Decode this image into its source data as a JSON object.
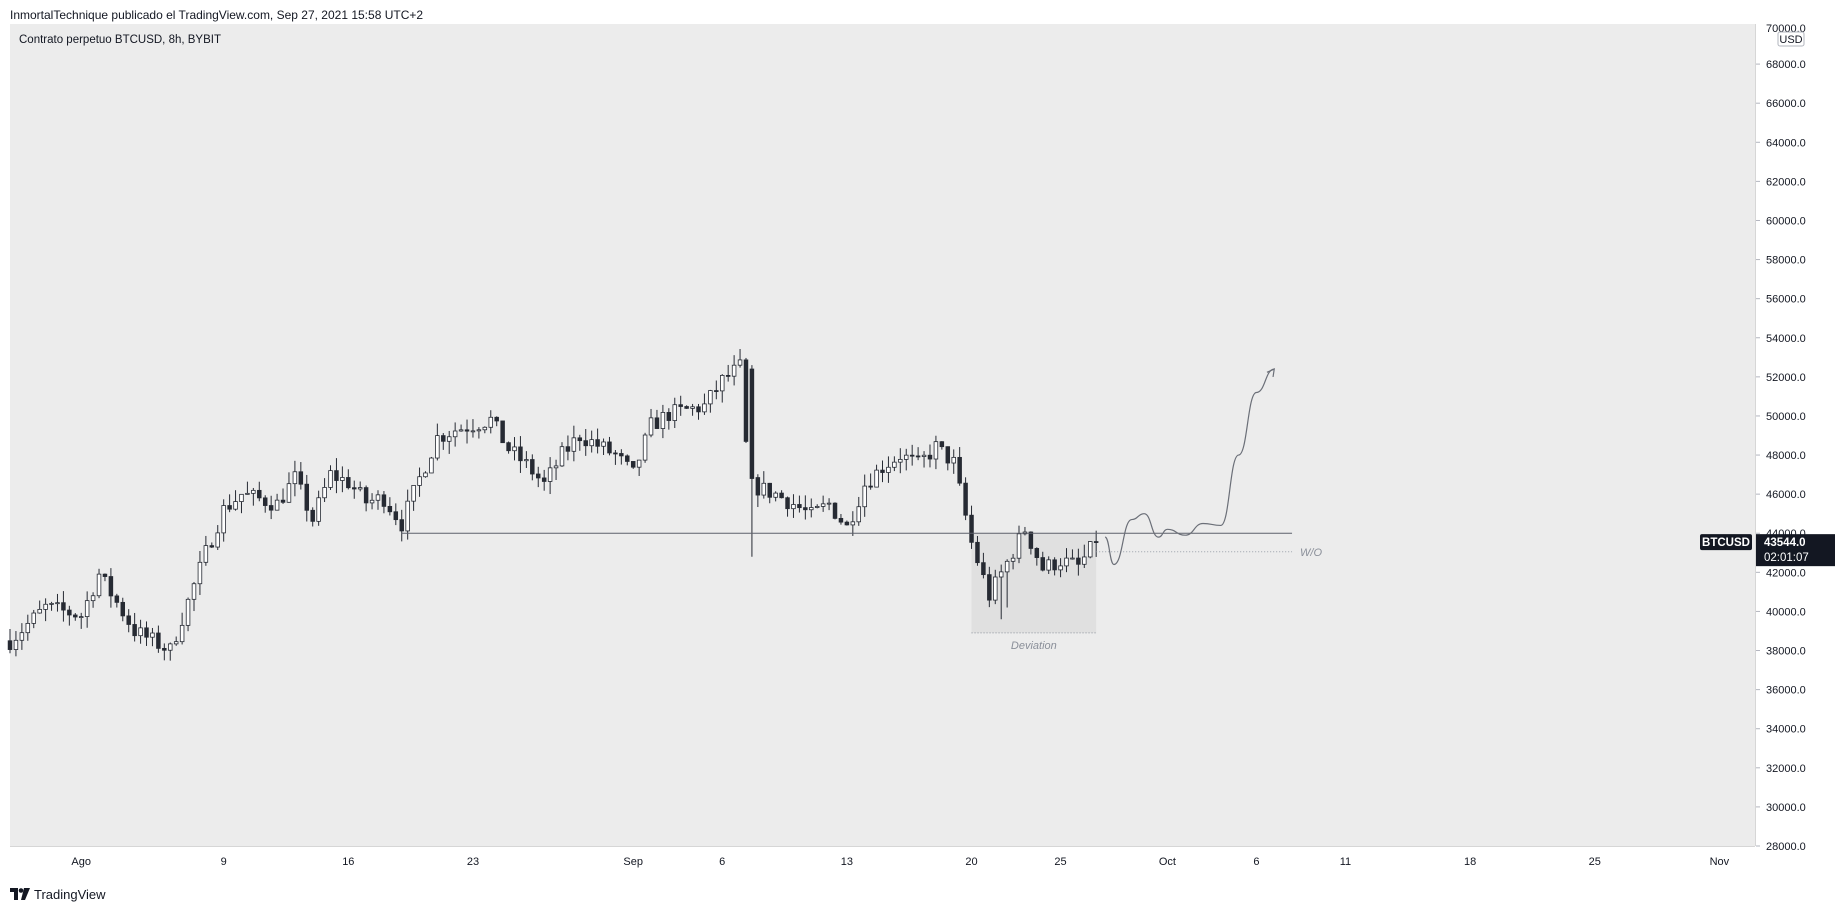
{
  "header": {
    "published_text": "InmortalTechnique publicado el TradingView.com, Sep 27, 2021 15:58 UTC+2"
  },
  "legend": {
    "symbol_text": "Contrato perpetuo BTCUSD, 8h, BYBIT"
  },
  "footer": {
    "brand": "TradingView",
    "logo_icon": "tradingview-logo-icon"
  },
  "colors": {
    "chart_bg": "#ececec",
    "candle": "#262a33",
    "badge_bg": "#131722",
    "annotation": "#8a8f99"
  },
  "chart_data": {
    "type": "candlestick",
    "title": "",
    "interval": "8h",
    "exchange": "BYBIT",
    "currency_label": "USD",
    "symbol": "BTCUSD",
    "ylim": [
      28000,
      70000
    ],
    "y_ticks": [
      "68000.0",
      "66000.0",
      "64000.0",
      "62000.0",
      "60000.0",
      "58000.0",
      "56000.0",
      "54000.0",
      "52000.0",
      "50000.0",
      "48000.0",
      "46000.0",
      "44000.0",
      "42000.0",
      "40000.0",
      "38000.0",
      "36000.0",
      "34000.0",
      "32000.0",
      "30000.0",
      "28000.0"
    ],
    "y_top_tick": "70000.0",
    "x_start": "2021-07-28",
    "x_end": "2021-11-03",
    "x_ticks": [
      {
        "date": "2021-08-01",
        "label": "Ago"
      },
      {
        "date": "2021-08-09",
        "label": "9"
      },
      {
        "date": "2021-08-16",
        "label": "16"
      },
      {
        "date": "2021-08-23",
        "label": "23"
      },
      {
        "date": "2021-09-01",
        "label": "Sep"
      },
      {
        "date": "2021-09-06",
        "label": "6"
      },
      {
        "date": "2021-09-13",
        "label": "13"
      },
      {
        "date": "2021-09-20",
        "label": "20"
      },
      {
        "date": "2021-09-25",
        "label": "25"
      },
      {
        "date": "2021-10-01",
        "label": "Oct"
      },
      {
        "date": "2021-10-06",
        "label": "6"
      },
      {
        "date": "2021-10-11",
        "label": "11"
      },
      {
        "date": "2021-10-18",
        "label": "18"
      },
      {
        "date": "2021-10-25",
        "label": "25"
      },
      {
        "date": "2021-11-01",
        "label": "Nov"
      }
    ],
    "waypoints": [
      {
        "date": "2021-07-28",
        "close": 38500
      },
      {
        "date": "2021-07-30",
        "close": 40200
      },
      {
        "date": "2021-08-01",
        "close": 39800
      },
      {
        "date": "2021-08-02",
        "close": 41900
      },
      {
        "date": "2021-08-04",
        "close": 39000
      },
      {
        "date": "2021-08-06",
        "close": 38000
      },
      {
        "date": "2021-08-07",
        "close": 40500
      },
      {
        "date": "2021-08-08",
        "close": 43000
      },
      {
        "date": "2021-08-09",
        "close": 45200
      },
      {
        "date": "2021-08-10",
        "close": 46000
      },
      {
        "date": "2021-08-12",
        "close": 45500
      },
      {
        "date": "2021-08-13",
        "close": 46800
      },
      {
        "date": "2021-08-14",
        "close": 44700
      },
      {
        "date": "2021-08-15",
        "close": 47000
      },
      {
        "date": "2021-08-16",
        "close": 46600
      },
      {
        "date": "2021-08-17",
        "close": 45600
      },
      {
        "date": "2021-08-18",
        "close": 45800
      },
      {
        "date": "2021-08-19",
        "close": 44500
      },
      {
        "date": "2021-08-20",
        "close": 46800
      },
      {
        "date": "2021-08-21",
        "close": 48900
      },
      {
        "date": "2021-08-22",
        "close": 49300
      },
      {
        "date": "2021-08-24",
        "close": 49800
      },
      {
        "date": "2021-08-25",
        "close": 48300
      },
      {
        "date": "2021-08-26",
        "close": 47500
      },
      {
        "date": "2021-08-27",
        "close": 46500
      },
      {
        "date": "2021-08-28",
        "close": 48000
      },
      {
        "date": "2021-08-29",
        "close": 49000
      },
      {
        "date": "2021-08-31",
        "close": 48000
      },
      {
        "date": "2021-09-01",
        "close": 47000
      },
      {
        "date": "2021-09-02",
        "close": 49500
      },
      {
        "date": "2021-09-03",
        "close": 50100
      },
      {
        "date": "2021-09-05",
        "close": 50500
      },
      {
        "date": "2021-09-06",
        "close": 51800
      },
      {
        "date": "2021-09-07",
        "close": 52500
      },
      {
        "date": "2021-09-07.5",
        "close": 46500
      },
      {
        "date": "2021-09-09",
        "close": 46000
      },
      {
        "date": "2021-09-10",
        "close": 45500
      },
      {
        "date": "2021-09-11",
        "close": 44900
      },
      {
        "date": "2021-09-12",
        "close": 45500
      },
      {
        "date": "2021-09-13",
        "close": 44300
      },
      {
        "date": "2021-09-14",
        "close": 46500
      },
      {
        "date": "2021-09-15",
        "close": 47400
      },
      {
        "date": "2021-09-16",
        "close": 48000
      },
      {
        "date": "2021-09-17",
        "close": 47500
      },
      {
        "date": "2021-09-18",
        "close": 48400
      },
      {
        "date": "2021-09-19",
        "close": 47600
      },
      {
        "date": "2021-09-20",
        "close": 43500
      },
      {
        "date": "2021-09-21",
        "close": 40800
      },
      {
        "date": "2021-09-22",
        "close": 42500
      },
      {
        "date": "2021-09-23",
        "close": 44200
      },
      {
        "date": "2021-09-24",
        "close": 42200
      },
      {
        "date": "2021-09-25",
        "close": 42600
      },
      {
        "date": "2021-09-26",
        "close": 42300
      },
      {
        "date": "2021-09-27",
        "close": 43544
      }
    ],
    "support_line": {
      "price": 44000,
      "from": "2021-08-19",
      "to": "2021-10-08"
    },
    "wo_line": {
      "price": 43050,
      "from": "2021-09-27",
      "to": "2021-10-08",
      "label": "W/O"
    },
    "deviation_zone": {
      "from": "2021-09-20",
      "to": "2021-09-27",
      "low": 38900,
      "high": 44000,
      "label": "Deviation"
    },
    "projection_path": [
      {
        "date": "2021-09-27.5",
        "price": 43800
      },
      {
        "date": "2021-09-28",
        "price": 42400
      },
      {
        "date": "2021-09-29",
        "price": 44700
      },
      {
        "date": "2021-09-29.7",
        "price": 45000
      },
      {
        "date": "2021-09-30.5",
        "price": 43800
      },
      {
        "date": "2021-10-01",
        "price": 44200
      },
      {
        "date": "2021-10-02",
        "price": 43900
      },
      {
        "date": "2021-10-03",
        "price": 44500
      },
      {
        "date": "2021-10-04",
        "price": 44400
      },
      {
        "date": "2021-10-05",
        "price": 48000
      },
      {
        "date": "2021-10-06",
        "price": 51200
      },
      {
        "date": "2021-10-07",
        "price": 52400
      }
    ],
    "last_price": {
      "symbol": "BTCUSD",
      "price": "43544.0",
      "countdown": "02:01:07"
    }
  }
}
